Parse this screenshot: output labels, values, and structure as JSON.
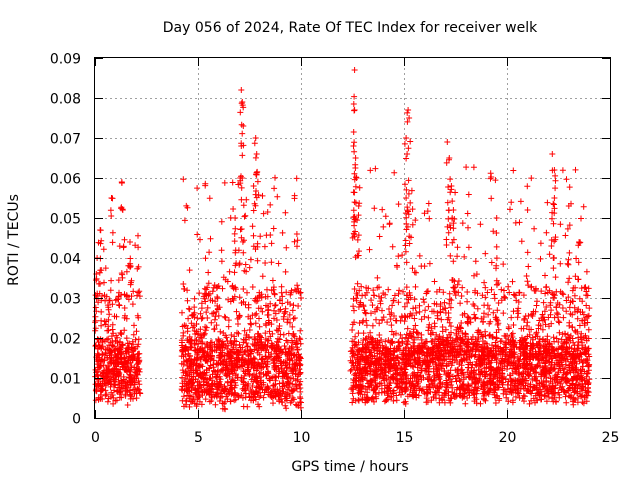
{
  "chart_data": {
    "type": "scatter",
    "title": "Day 056 of 2024, Rate Of TEC Index for receiver welk",
    "xlabel": "GPS time / hours",
    "ylabel": "ROTI / TECUs",
    "xlim": [
      0,
      25
    ],
    "ylim": [
      0,
      0.09
    ],
    "xticks": [
      0,
      5,
      10,
      15,
      20,
      25
    ],
    "xtick_labels": [
      "0",
      "5",
      "10",
      "15",
      "20",
      "25"
    ],
    "yticks": [
      0,
      0.01,
      0.02,
      0.03,
      0.04,
      0.05,
      0.06,
      0.07,
      0.08,
      0.09
    ],
    "ytick_labels": [
      "0",
      "0.01",
      "0.02",
      "0.03",
      "0.04",
      "0.05",
      "0.06",
      "0.07",
      "0.08",
      "0.09"
    ],
    "grid": true,
    "marker": "+",
    "marker_color": "#ff0000",
    "data_segments": [
      {
        "x_start": 0.0,
        "x_end": 2.2,
        "y_min": 0.003,
        "y_typical": 0.012,
        "y_max": 0.059
      },
      {
        "x_start": 4.2,
        "x_end": 10.0,
        "y_min": 0.002,
        "y_typical": 0.013,
        "y_max": 0.082
      },
      {
        "x_start": 12.4,
        "x_end": 24.0,
        "y_min": 0.003,
        "y_typical": 0.013,
        "y_max": 0.087
      }
    ],
    "notable_points": [
      {
        "x": 0.1,
        "y": 0.04
      },
      {
        "x": 0.25,
        "y": 0.047
      },
      {
        "x": 0.8,
        "y": 0.055
      },
      {
        "x": 1.3,
        "y": 0.059
      },
      {
        "x": 1.35,
        "y": 0.052
      },
      {
        "x": 1.7,
        "y": 0.044
      },
      {
        "x": 7.1,
        "y": 0.082
      },
      {
        "x": 7.15,
        "y": 0.079
      },
      {
        "x": 7.2,
        "y": 0.073
      },
      {
        "x": 7.1,
        "y": 0.068
      },
      {
        "x": 7.05,
        "y": 0.06
      },
      {
        "x": 7.8,
        "y": 0.07
      },
      {
        "x": 7.85,
        "y": 0.066
      },
      {
        "x": 7.7,
        "y": 0.058
      },
      {
        "x": 6.8,
        "y": 0.05
      },
      {
        "x": 9.8,
        "y": 0.046
      },
      {
        "x": 12.6,
        "y": 0.087
      },
      {
        "x": 12.6,
        "y": 0.077
      },
      {
        "x": 12.55,
        "y": 0.068
      },
      {
        "x": 12.65,
        "y": 0.065
      },
      {
        "x": 12.7,
        "y": 0.06
      },
      {
        "x": 12.8,
        "y": 0.053
      },
      {
        "x": 15.2,
        "y": 0.077
      },
      {
        "x": 15.25,
        "y": 0.075
      },
      {
        "x": 15.1,
        "y": 0.07
      },
      {
        "x": 15.15,
        "y": 0.066
      },
      {
        "x": 15.1,
        "y": 0.055
      },
      {
        "x": 17.1,
        "y": 0.069
      },
      {
        "x": 17.2,
        "y": 0.065
      },
      {
        "x": 17.3,
        "y": 0.058
      },
      {
        "x": 17.4,
        "y": 0.052
      },
      {
        "x": 19.5,
        "y": 0.05
      },
      {
        "x": 21.0,
        "y": 0.052
      },
      {
        "x": 22.2,
        "y": 0.066
      },
      {
        "x": 22.3,
        "y": 0.062
      },
      {
        "x": 22.3,
        "y": 0.055
      },
      {
        "x": 23.0,
        "y": 0.053
      },
      {
        "x": 23.5,
        "y": 0.044
      }
    ]
  }
}
